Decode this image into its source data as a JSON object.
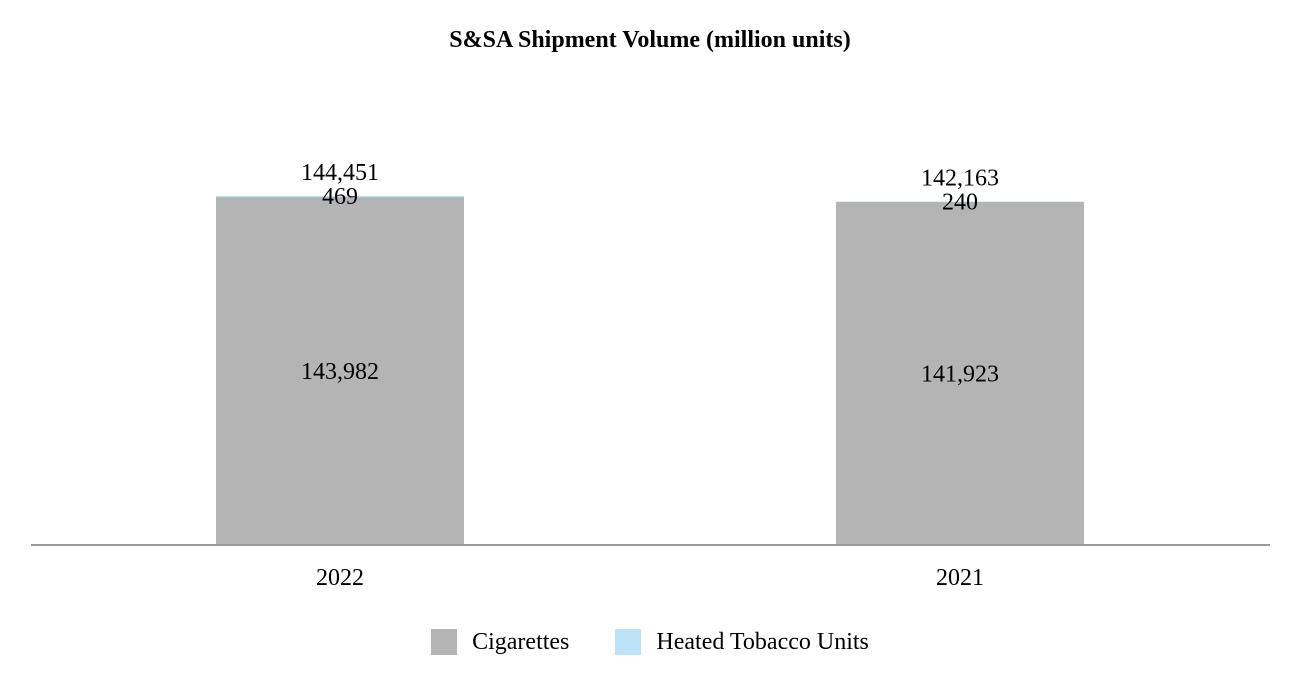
{
  "chart_data": {
    "type": "bar",
    "stacked": true,
    "title": "S&SA Shipment Volume (million units)",
    "categories": [
      "2022",
      "2021"
    ],
    "series": [
      {
        "name": "Cigarettes",
        "color": "#b4b4b4",
        "values": [
          143982,
          141923
        ]
      },
      {
        "name": "Heated Tobacco Units",
        "color": "#bde3f9",
        "values": [
          469,
          240
        ]
      }
    ],
    "totals": [
      144451,
      142163
    ],
    "value_labels": [
      {
        "total": "144,451",
        "segments": [
          "143,982",
          "469"
        ]
      },
      {
        "total": "142,163",
        "segments": [
          "141,923",
          "240"
        ]
      }
    ],
    "xlabel": "",
    "ylabel": "",
    "ylim": [
      0,
      180000
    ],
    "grid": false,
    "legend_position": "bottom"
  }
}
